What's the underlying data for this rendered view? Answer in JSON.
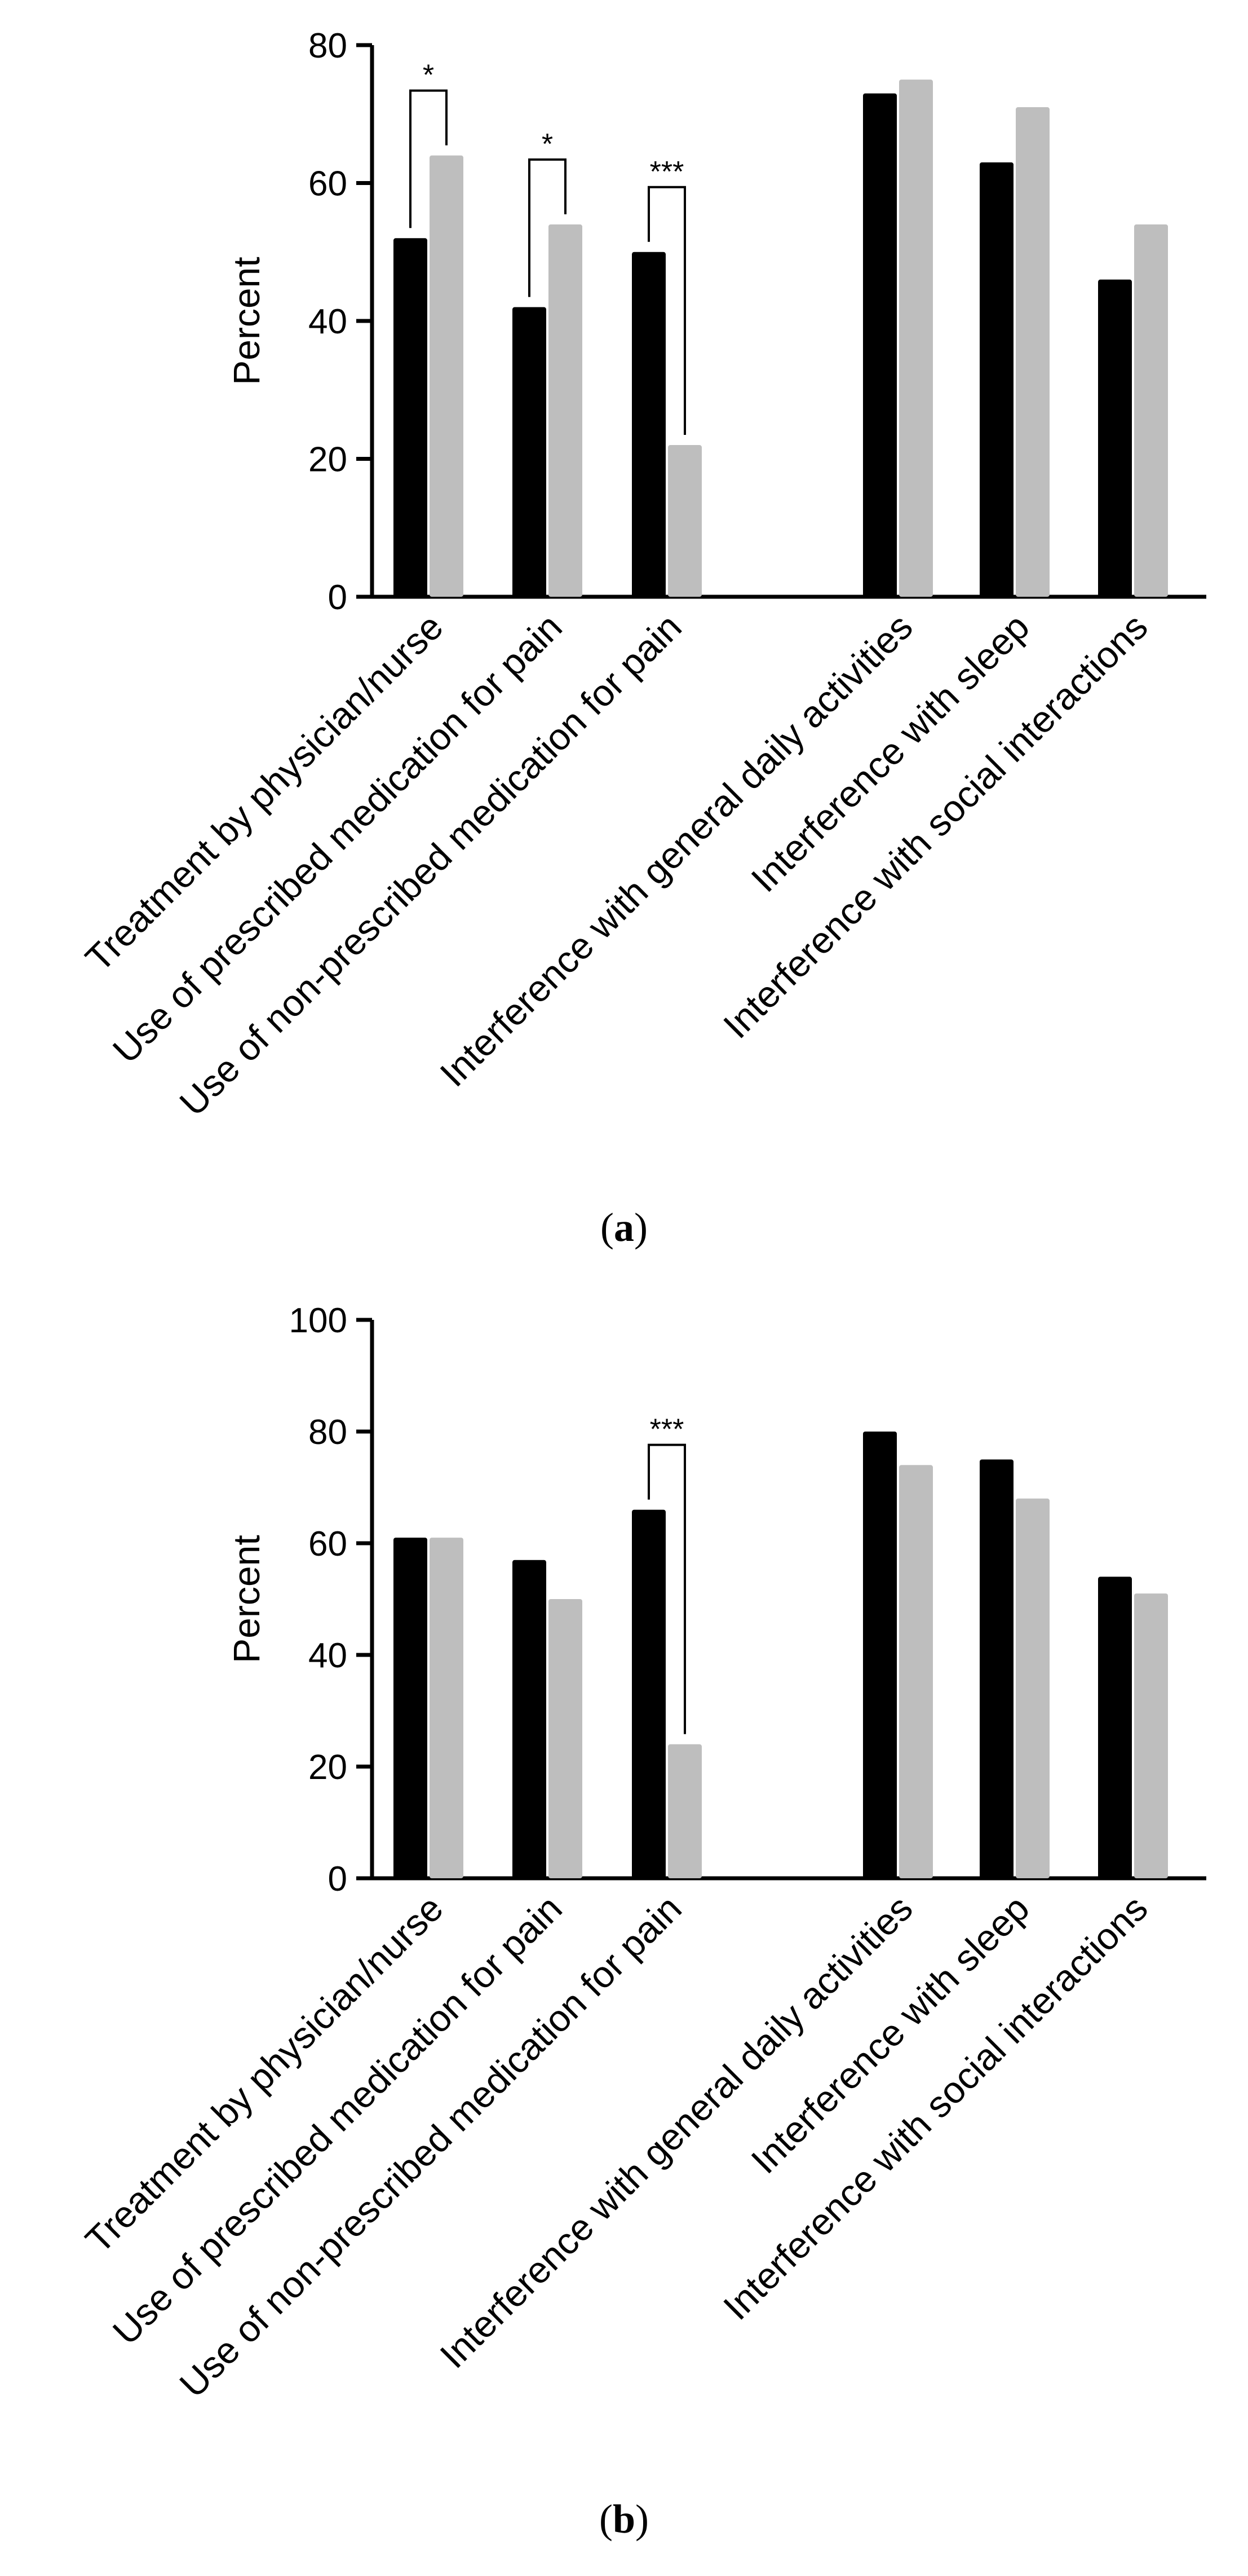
{
  "chart_data": [
    {
      "type": "bar",
      "panel": "a",
      "ylabel": "Percent",
      "ylim": [
        0,
        80
      ],
      "yticks": [
        0,
        20,
        40,
        60,
        80
      ],
      "categories": [
        "Treatment by physician/nurse",
        "Use of prescribed medication for pain",
        "Use of non-prescribed medication for pain",
        "Interference with general daily activities",
        "Interference with sleep",
        "Interference with social interactions"
      ],
      "series": [
        {
          "color": "#000000",
          "values": [
            52,
            42,
            50,
            73,
            63,
            46
          ]
        },
        {
          "color": "#bebebe",
          "values": [
            64,
            54,
            22,
            75,
            71,
            54
          ]
        }
      ],
      "annotations": [
        {
          "category_index": 0,
          "label": "*"
        },
        {
          "category_index": 1,
          "label": "*"
        },
        {
          "category_index": 2,
          "label": "***"
        }
      ]
    },
    {
      "type": "bar",
      "panel": "b",
      "ylabel": "Percent",
      "ylim": [
        0,
        100
      ],
      "yticks": [
        0,
        20,
        40,
        60,
        80,
        100
      ],
      "categories": [
        "Treatment by physician/nurse",
        "Use of prescribed medication for pain",
        "Use of non-prescribed medication for pain",
        "Interference with general daily activities",
        "Interference with sleep",
        "Interference with social interactions"
      ],
      "series": [
        {
          "color": "#000000",
          "values": [
            61,
            57,
            66,
            80,
            75,
            54
          ]
        },
        {
          "color": "#bebebe",
          "values": [
            61,
            50,
            24,
            74,
            68,
            51
          ]
        }
      ],
      "annotations": [
        {
          "category_index": 2,
          "label": "***"
        }
      ]
    }
  ]
}
